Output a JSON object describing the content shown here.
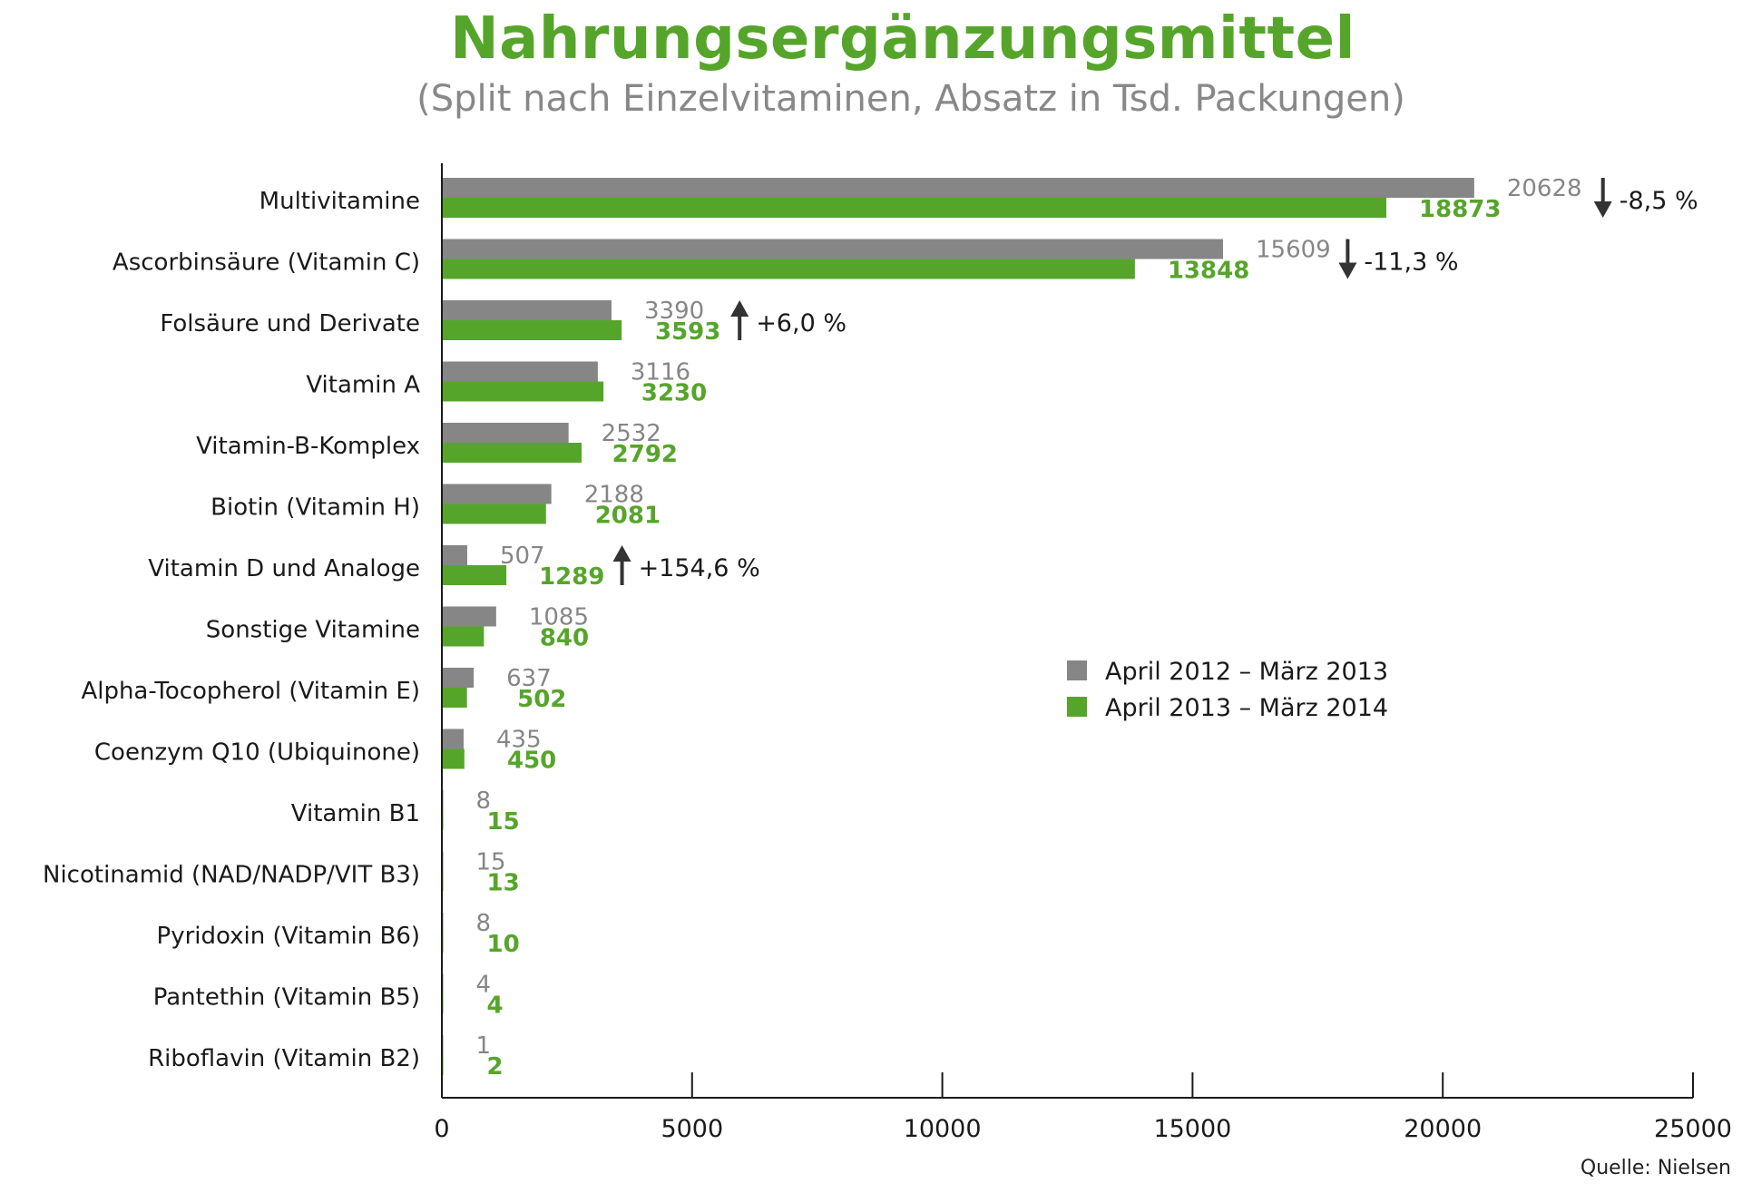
{
  "title": "Nahrungsergänzungsmittel",
  "subtitle": "(Split nach Einzelvitaminen, Absatz in Tsd. Packungen)",
  "source": "Quelle: Nielsen",
  "colors": {
    "series1": "#868686",
    "series2": "#56a52b",
    "title": "#56a52b",
    "text": "#1a1a1a"
  },
  "chart_data": {
    "type": "bar",
    "orientation": "horizontal",
    "categories": [
      "Multivitamine",
      "Ascorbinsäure (Vitamin C)",
      "Folsäure und Derivate",
      "Vitamin A",
      "Vitamin-B-Komplex",
      "Biotin (Vitamin H)",
      "Vitamin D und Analoge",
      "Sonstige Vitamine",
      "Alpha-Tocopherol (Vitamin E)",
      "Coenzym Q10 (Ubiquinone)",
      "Vitamin B1",
      "Nicotinamid (NAD/NADP/VIT B3)",
      "Pyridoxin (Vitamin B6)",
      "Pantethin (Vitamin B5)",
      "Riboflavin (Vitamin B2)"
    ],
    "series": [
      {
        "name": "April 2012 – März 2013",
        "color": "#868686",
        "values": [
          20628,
          15609,
          3390,
          3116,
          2532,
          2188,
          507,
          1085,
          637,
          435,
          8,
          15,
          8,
          4,
          1
        ]
      },
      {
        "name": "April 2013 – März 2014",
        "color": "#56a52b",
        "values": [
          18873,
          13848,
          3593,
          3230,
          2792,
          2081,
          1289,
          840,
          502,
          450,
          15,
          13,
          10,
          4,
          2
        ]
      }
    ],
    "annotations": [
      {
        "category": "Multivitamine",
        "direction": "down",
        "text": "-8,5 %",
        "x": 23200
      },
      {
        "category": "Ascorbinsäure (Vitamin C)",
        "direction": "down",
        "text": "-11,3 %",
        "x": 18100
      },
      {
        "category": "Folsäure und Derivate",
        "direction": "up",
        "text": "+6,0 %",
        "x": 5950
      },
      {
        "category": "Vitamin D und Analoge",
        "direction": "up",
        "text": "+154,6 %",
        "x": 3600
      }
    ],
    "xlim": [
      0,
      25000
    ],
    "xticks": [
      0,
      5000,
      10000,
      15000,
      20000,
      25000
    ],
    "legend_position": "center-right",
    "grid": false
  }
}
